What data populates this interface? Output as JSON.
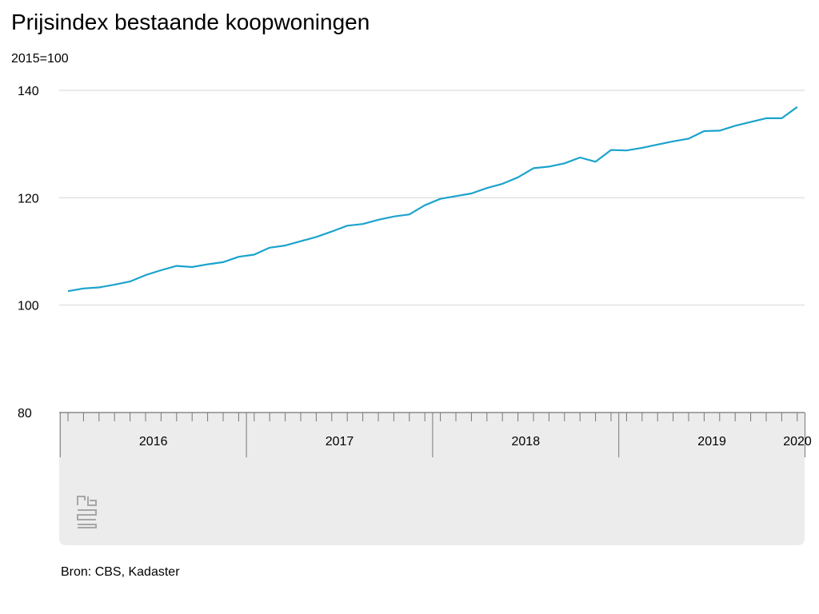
{
  "title": "Prijsindex bestaande koopwoningen",
  "unit_label": "2015=100",
  "source": "Bron: CBS, Kadaster",
  "chart_data": {
    "type": "line",
    "title": "Prijsindex bestaande koopwoningen",
    "ylabel": "2015=100",
    "ylim": [
      80,
      140
    ],
    "yticks": [
      80,
      100,
      120,
      140
    ],
    "x_start": "2016-01",
    "year_labels": [
      "2016",
      "2017",
      "2018",
      "2019",
      "2020"
    ],
    "grid": true,
    "color": "#1ba3cc",
    "series": [
      {
        "values": [
          102.6,
          103.1,
          103.3,
          103.8,
          104.4,
          105.6,
          106.5,
          107.3,
          107.1,
          107.6,
          108.0,
          109.0,
          109.4,
          110.7,
          111.1,
          111.9,
          112.7,
          113.7,
          114.8,
          115.1,
          115.9,
          116.5,
          116.9,
          118.6,
          119.8,
          120.3,
          120.8,
          121.8,
          122.6,
          123.8,
          125.5,
          125.8,
          126.4,
          127.5,
          126.7,
          128.9,
          128.8,
          129.3,
          129.9,
          130.5,
          131.0,
          132.4,
          132.5,
          133.4,
          134.1,
          134.8,
          134.8,
          136.9
        ]
      }
    ]
  }
}
